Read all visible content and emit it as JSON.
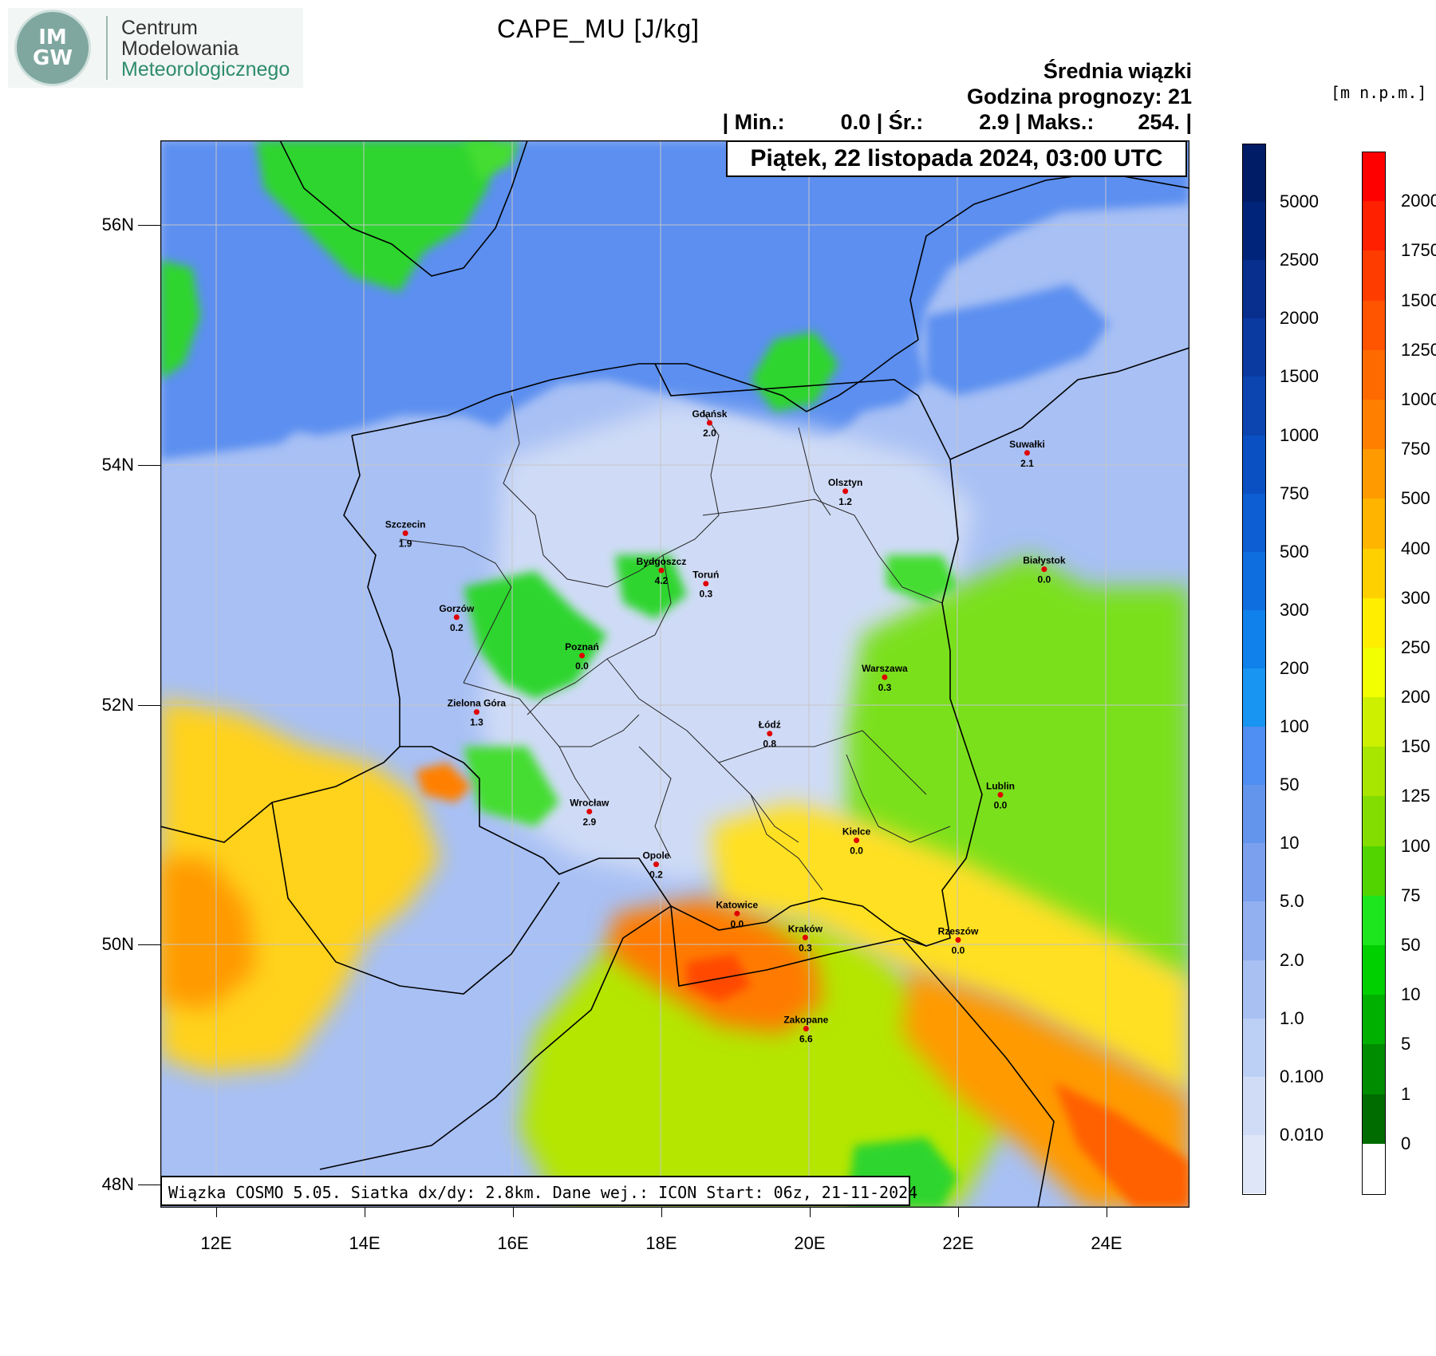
{
  "logo": {
    "mark_top": "IM",
    "mark_bottom": "GW",
    "line1": "Centrum",
    "line2": "Modelowania",
    "line3": "Meteorologicznego"
  },
  "title": "CAPE_MU [J/kg]",
  "subtitle": "Średnia wiązki",
  "forecast_hour": "Godzina prognozy: 21",
  "stats": {
    "min_label": "| Min.:",
    "min_value": "0.0",
    "avg_label": "| Śr.:",
    "avg_value": "2.9",
    "max_label": "| Maks.:",
    "max_value": "254.",
    "end": "|"
  },
  "date": "Piątek, 22 listopada 2024, 03:00 UTC",
  "info": "Wiązka COSMO 5.05. Siatka dx/dy: 2.8km. Dane wej.: ICON Start: 06z, 21-11-2024",
  "lat_labels": [
    {
      "text": "56N",
      "lat": 56
    },
    {
      "text": "54N",
      "lat": 54
    },
    {
      "text": "52N",
      "lat": 52
    },
    {
      "text": "50N",
      "lat": 50
    },
    {
      "text": "48N",
      "lat": 48
    }
  ],
  "lon_labels": [
    {
      "text": "12E",
      "lon": 12
    },
    {
      "text": "14E",
      "lon": 14
    },
    {
      "text": "16E",
      "lon": 16
    },
    {
      "text": "18E",
      "lon": 18
    },
    {
      "text": "20E",
      "lon": 20
    },
    {
      "text": "22E",
      "lon": 22
    },
    {
      "text": "24E",
      "lon": 24
    }
  ],
  "cities": [
    {
      "name": "Gdańsk",
      "value": "2.0",
      "lat": 54.35,
      "lon": 18.65
    },
    {
      "name": "Suwałki",
      "value": "2.1",
      "lat": 54.1,
      "lon": 22.93
    },
    {
      "name": "Olsztyn",
      "value": "1.2",
      "lat": 53.78,
      "lon": 20.48
    },
    {
      "name": "Szczecin",
      "value": "1.9",
      "lat": 53.43,
      "lon": 14.55
    },
    {
      "name": "Bydgoszcz",
      "value": "4.2",
      "lat": 53.12,
      "lon": 18.0
    },
    {
      "name": "Toruń",
      "value": "0.3",
      "lat": 53.01,
      "lon": 18.6
    },
    {
      "name": "Białystok",
      "value": "0.0",
      "lat": 53.13,
      "lon": 23.16
    },
    {
      "name": "Gorzów",
      "value": "0.2",
      "lat": 52.73,
      "lon": 15.24
    },
    {
      "name": "Poznań",
      "value": "0.0",
      "lat": 52.41,
      "lon": 16.93
    },
    {
      "name": "Warszawa",
      "value": "0.3",
      "lat": 52.23,
      "lon": 21.01
    },
    {
      "name": "Zielona Góra",
      "value": "1.3",
      "lat": 51.94,
      "lon": 15.51
    },
    {
      "name": "Łódź",
      "value": "0.8",
      "lat": 51.76,
      "lon": 19.46
    },
    {
      "name": "Lublin",
      "value": "0.0",
      "lat": 51.25,
      "lon": 22.57
    },
    {
      "name": "Wrocław",
      "value": "2.9",
      "lat": 51.11,
      "lon": 17.03
    },
    {
      "name": "Kielce",
      "value": "0.0",
      "lat": 50.87,
      "lon": 20.63
    },
    {
      "name": "Opole",
      "value": "0.2",
      "lat": 50.67,
      "lon": 17.93
    },
    {
      "name": "Katowice",
      "value": "0.0",
      "lat": 50.26,
      "lon": 19.02
    },
    {
      "name": "Kraków",
      "value": "0.3",
      "lat": 50.06,
      "lon": 19.94
    },
    {
      "name": "Rzeszów",
      "value": "0.0",
      "lat": 50.04,
      "lon": 22.0
    },
    {
      "name": "Zakopane",
      "value": "6.6",
      "lat": 49.3,
      "lon": 19.95
    }
  ],
  "colorbar_left": {
    "labels": [
      "5000",
      "2500",
      "2000",
      "1500",
      "1000",
      "750",
      "500",
      "300",
      "200",
      "100",
      "50",
      "10",
      "5.0",
      "2.0",
      "1.0",
      "0.100",
      "0.010"
    ],
    "colors": [
      "#001c66",
      "#00247a",
      "#082e8e",
      "#0a3aa0",
      "#0c45b0",
      "#0a50c2",
      "#0c5ed2",
      "#0e6ee0",
      "#1080ea",
      "#1894f2",
      "#4f8ef2",
      "#6495ed",
      "#7aa0ee",
      "#92b0f0",
      "#a8c0f2",
      "#bccff4",
      "#d0dcf6",
      "#dfe6f8"
    ]
  },
  "colorbar_right": {
    "unit": "[m n.p.m.]",
    "labels": [
      "2000",
      "1750",
      "1500",
      "1250",
      "1000",
      "750",
      "500",
      "400",
      "300",
      "250",
      "200",
      "150",
      "125",
      "100",
      "75",
      "50",
      "10",
      "5",
      "1",
      "0"
    ],
    "colors": [
      "#ff0000",
      "#ff2000",
      "#ff3c00",
      "#ff5400",
      "#ff6a00",
      "#ff8000",
      "#ff9a00",
      "#ffb400",
      "#ffd000",
      "#ffee00",
      "#f2ff00",
      "#ccf000",
      "#a8e600",
      "#84dd00",
      "#52d400",
      "#1ee61e",
      "#00d000",
      "#00b000",
      "#008c00",
      "#006c00",
      "#ffffff"
    ]
  },
  "colors": {
    "sea": "#5b8ff0",
    "land_low": "#a8c0f4",
    "land_pale": "#cdd8f6",
    "green": "#2ed52e",
    "yellow_green": "#b4e600",
    "yellow": "#ffd21e",
    "orange": "#ff8c00",
    "red_orange": "#ff5a00"
  }
}
